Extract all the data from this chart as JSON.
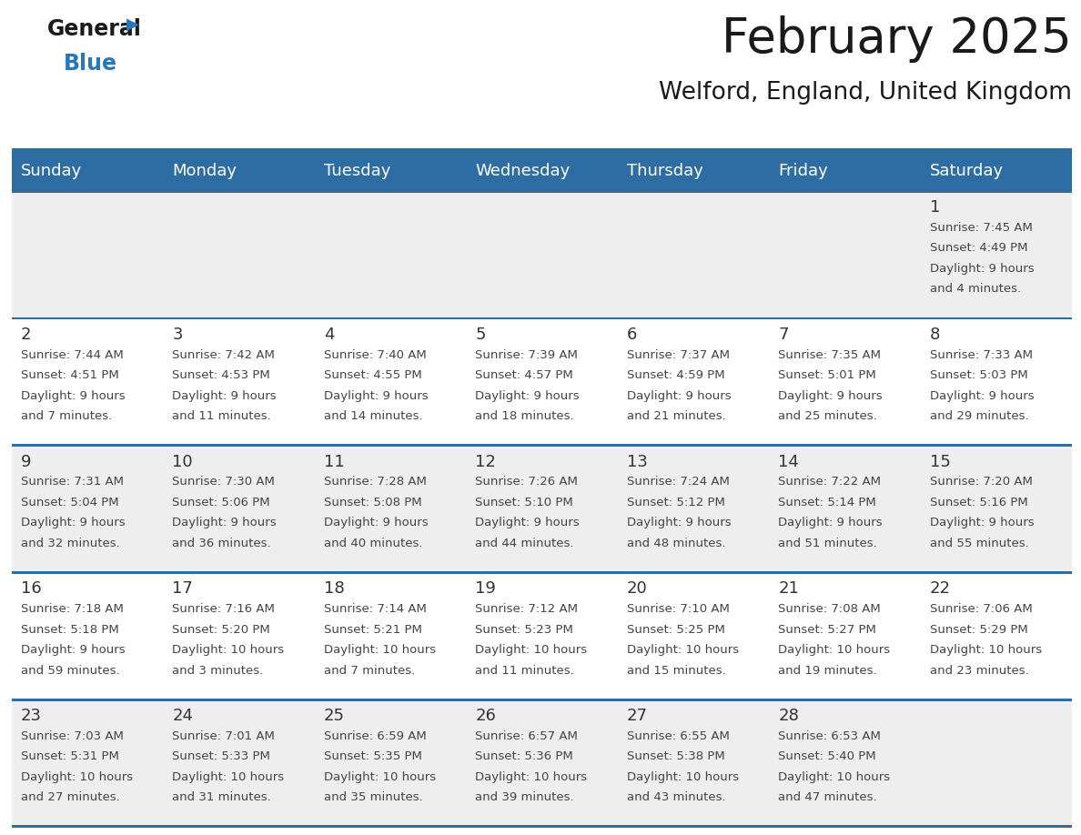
{
  "title": "February 2025",
  "subtitle": "Welford, England, United Kingdom",
  "header_bg": "#2E6DA4",
  "header_text": "#FFFFFF",
  "cell_bg_light": "#EFEFEF",
  "cell_bg_white": "#FFFFFF",
  "cell_border_color": "#2E6DA4",
  "day_names": [
    "Sunday",
    "Monday",
    "Tuesday",
    "Wednesday",
    "Thursday",
    "Friday",
    "Saturday"
  ],
  "days": [
    {
      "day": 1,
      "col": 6,
      "row": 0,
      "sunrise": "7:45 AM",
      "sunset": "4:49 PM",
      "daylight_line1": "Daylight: 9 hours",
      "daylight_line2": "and 4 minutes."
    },
    {
      "day": 2,
      "col": 0,
      "row": 1,
      "sunrise": "7:44 AM",
      "sunset": "4:51 PM",
      "daylight_line1": "Daylight: 9 hours",
      "daylight_line2": "and 7 minutes."
    },
    {
      "day": 3,
      "col": 1,
      "row": 1,
      "sunrise": "7:42 AM",
      "sunset": "4:53 PM",
      "daylight_line1": "Daylight: 9 hours",
      "daylight_line2": "and 11 minutes."
    },
    {
      "day": 4,
      "col": 2,
      "row": 1,
      "sunrise": "7:40 AM",
      "sunset": "4:55 PM",
      "daylight_line1": "Daylight: 9 hours",
      "daylight_line2": "and 14 minutes."
    },
    {
      "day": 5,
      "col": 3,
      "row": 1,
      "sunrise": "7:39 AM",
      "sunset": "4:57 PM",
      "daylight_line1": "Daylight: 9 hours",
      "daylight_line2": "and 18 minutes."
    },
    {
      "day": 6,
      "col": 4,
      "row": 1,
      "sunrise": "7:37 AM",
      "sunset": "4:59 PM",
      "daylight_line1": "Daylight: 9 hours",
      "daylight_line2": "and 21 minutes."
    },
    {
      "day": 7,
      "col": 5,
      "row": 1,
      "sunrise": "7:35 AM",
      "sunset": "5:01 PM",
      "daylight_line1": "Daylight: 9 hours",
      "daylight_line2": "and 25 minutes."
    },
    {
      "day": 8,
      "col": 6,
      "row": 1,
      "sunrise": "7:33 AM",
      "sunset": "5:03 PM",
      "daylight_line1": "Daylight: 9 hours",
      "daylight_line2": "and 29 minutes."
    },
    {
      "day": 9,
      "col": 0,
      "row": 2,
      "sunrise": "7:31 AM",
      "sunset": "5:04 PM",
      "daylight_line1": "Daylight: 9 hours",
      "daylight_line2": "and 32 minutes."
    },
    {
      "day": 10,
      "col": 1,
      "row": 2,
      "sunrise": "7:30 AM",
      "sunset": "5:06 PM",
      "daylight_line1": "Daylight: 9 hours",
      "daylight_line2": "and 36 minutes."
    },
    {
      "day": 11,
      "col": 2,
      "row": 2,
      "sunrise": "7:28 AM",
      "sunset": "5:08 PM",
      "daylight_line1": "Daylight: 9 hours",
      "daylight_line2": "and 40 minutes."
    },
    {
      "day": 12,
      "col": 3,
      "row": 2,
      "sunrise": "7:26 AM",
      "sunset": "5:10 PM",
      "daylight_line1": "Daylight: 9 hours",
      "daylight_line2": "and 44 minutes."
    },
    {
      "day": 13,
      "col": 4,
      "row": 2,
      "sunrise": "7:24 AM",
      "sunset": "5:12 PM",
      "daylight_line1": "Daylight: 9 hours",
      "daylight_line2": "and 48 minutes."
    },
    {
      "day": 14,
      "col": 5,
      "row": 2,
      "sunrise": "7:22 AM",
      "sunset": "5:14 PM",
      "daylight_line1": "Daylight: 9 hours",
      "daylight_line2": "and 51 minutes."
    },
    {
      "day": 15,
      "col": 6,
      "row": 2,
      "sunrise": "7:20 AM",
      "sunset": "5:16 PM",
      "daylight_line1": "Daylight: 9 hours",
      "daylight_line2": "and 55 minutes."
    },
    {
      "day": 16,
      "col": 0,
      "row": 3,
      "sunrise": "7:18 AM",
      "sunset": "5:18 PM",
      "daylight_line1": "Daylight: 9 hours",
      "daylight_line2": "and 59 minutes."
    },
    {
      "day": 17,
      "col": 1,
      "row": 3,
      "sunrise": "7:16 AM",
      "sunset": "5:20 PM",
      "daylight_line1": "Daylight: 10 hours",
      "daylight_line2": "and 3 minutes."
    },
    {
      "day": 18,
      "col": 2,
      "row": 3,
      "sunrise": "7:14 AM",
      "sunset": "5:21 PM",
      "daylight_line1": "Daylight: 10 hours",
      "daylight_line2": "and 7 minutes."
    },
    {
      "day": 19,
      "col": 3,
      "row": 3,
      "sunrise": "7:12 AM",
      "sunset": "5:23 PM",
      "daylight_line1": "Daylight: 10 hours",
      "daylight_line2": "and 11 minutes."
    },
    {
      "day": 20,
      "col": 4,
      "row": 3,
      "sunrise": "7:10 AM",
      "sunset": "5:25 PM",
      "daylight_line1": "Daylight: 10 hours",
      "daylight_line2": "and 15 minutes."
    },
    {
      "day": 21,
      "col": 5,
      "row": 3,
      "sunrise": "7:08 AM",
      "sunset": "5:27 PM",
      "daylight_line1": "Daylight: 10 hours",
      "daylight_line2": "and 19 minutes."
    },
    {
      "day": 22,
      "col": 6,
      "row": 3,
      "sunrise": "7:06 AM",
      "sunset": "5:29 PM",
      "daylight_line1": "Daylight: 10 hours",
      "daylight_line2": "and 23 minutes."
    },
    {
      "day": 23,
      "col": 0,
      "row": 4,
      "sunrise": "7:03 AM",
      "sunset": "5:31 PM",
      "daylight_line1": "Daylight: 10 hours",
      "daylight_line2": "and 27 minutes."
    },
    {
      "day": 24,
      "col": 1,
      "row": 4,
      "sunrise": "7:01 AM",
      "sunset": "5:33 PM",
      "daylight_line1": "Daylight: 10 hours",
      "daylight_line2": "and 31 minutes."
    },
    {
      "day": 25,
      "col": 2,
      "row": 4,
      "sunrise": "6:59 AM",
      "sunset": "5:35 PM",
      "daylight_line1": "Daylight: 10 hours",
      "daylight_line2": "and 35 minutes."
    },
    {
      "day": 26,
      "col": 3,
      "row": 4,
      "sunrise": "6:57 AM",
      "sunset": "5:36 PM",
      "daylight_line1": "Daylight: 10 hours",
      "daylight_line2": "and 39 minutes."
    },
    {
      "day": 27,
      "col": 4,
      "row": 4,
      "sunrise": "6:55 AM",
      "sunset": "5:38 PM",
      "daylight_line1": "Daylight: 10 hours",
      "daylight_line2": "and 43 minutes."
    },
    {
      "day": 28,
      "col": 5,
      "row": 4,
      "sunrise": "6:53 AM",
      "sunset": "5:40 PM",
      "daylight_line1": "Daylight: 10 hours",
      "daylight_line2": "and 47 minutes."
    }
  ],
  "num_rows": 5,
  "logo_color_general": "#1a1a1a",
  "logo_color_blue": "#2777BF",
  "logo_triangle_color": "#2777BF",
  "title_fontsize": 38,
  "subtitle_fontsize": 19,
  "header_fontsize": 13,
  "day_number_fontsize": 13,
  "cell_text_fontsize": 9.5
}
